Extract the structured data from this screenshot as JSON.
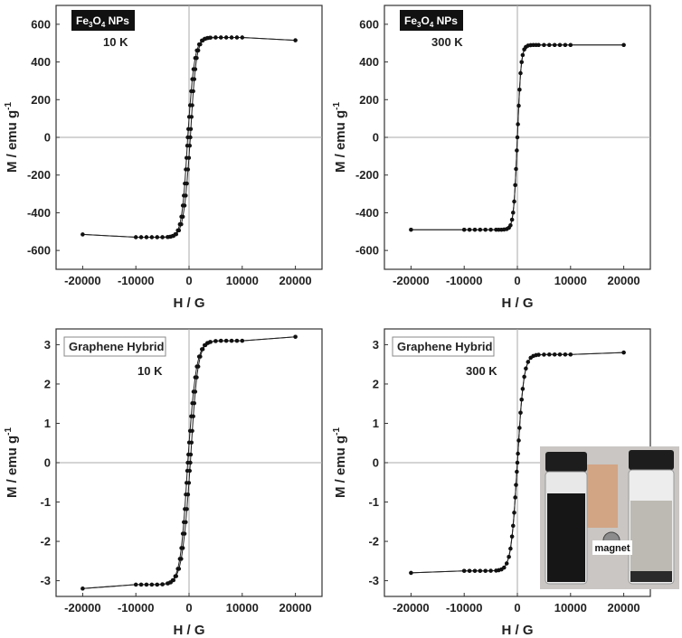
{
  "chart_data": [
    {
      "type": "scatter",
      "label": "Fe3O4 NPs",
      "temperature": "10 K",
      "xlabel": "H / G",
      "ylabel": "M / emu g-1",
      "xlim": [
        -25000,
        25000
      ],
      "ylim": [
        -700,
        700
      ],
      "xticks": [
        -20000,
        -10000,
        0,
        10000,
        20000
      ],
      "yticks": [
        -600,
        -400,
        -200,
        0,
        200,
        400,
        600
      ],
      "Ms": 530,
      "field_scale": 1200,
      "hysteresis_width": 500,
      "grid": false,
      "x": [
        -20000,
        20000
      ],
      "y": [
        -515,
        515
      ]
    },
    {
      "type": "scatter",
      "label": "Fe3O4 NPs",
      "temperature": "300 K",
      "xlabel": "H / G",
      "ylabel": "M / emu g-1",
      "xlim": [
        -25000,
        25000
      ],
      "ylim": [
        -700,
        700
      ],
      "xticks": [
        -20000,
        -10000,
        0,
        10000,
        20000
      ],
      "yticks": [
        -600,
        -400,
        -200,
        0,
        200,
        400,
        600
      ],
      "Ms": 490,
      "field_scale": 700,
      "hysteresis_width": 0,
      "grid": false,
      "x": [
        -20000,
        20000
      ],
      "y": [
        -490,
        490
      ]
    },
    {
      "type": "scatter",
      "label": "Graphene Hybrid",
      "temperature": "10 K",
      "xlabel": "H / G",
      "ylabel": "M / emu g-1",
      "xlim": [
        -25000,
        25000
      ],
      "ylim": [
        -3.4,
        3.4
      ],
      "xticks": [
        -20000,
        -10000,
        0,
        10000,
        20000
      ],
      "yticks": [
        -3,
        -2,
        -1,
        0,
        1,
        2,
        3
      ],
      "Ms": 3.1,
      "field_scale": 1500,
      "hysteresis_width": 500,
      "grid": false,
      "x": [
        -20000,
        20000
      ],
      "y": [
        -3.2,
        3.2
      ]
    },
    {
      "type": "scatter",
      "label": "Graphene Hybrid",
      "temperature": "300 K",
      "xlabel": "H / G",
      "ylabel": "M / emu g-1",
      "xlim": [
        -25000,
        25000
      ],
      "ylim": [
        -3.4,
        3.4
      ],
      "xticks": [
        -20000,
        -10000,
        0,
        10000,
        20000
      ],
      "yticks": [
        -3,
        -2,
        -1,
        0,
        1,
        2,
        3
      ],
      "Ms": 2.75,
      "field_scale": 1200,
      "hysteresis_width": 0,
      "grid": false,
      "x": [
        -20000,
        20000
      ],
      "y": [
        -2.8,
        2.8
      ]
    }
  ],
  "inset": {
    "label": "magnet"
  }
}
